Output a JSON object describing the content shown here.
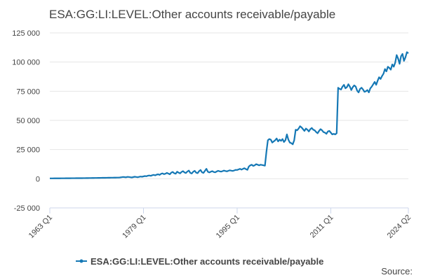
{
  "chart_data": {
    "type": "line",
    "title": "ESA:GG:LI:LEVEL:Other accounts receivable/payable",
    "source": "Source:",
    "categories": [
      "1963 Q1",
      null,
      null,
      null,
      null,
      null,
      null,
      null,
      null,
      null,
      null,
      null,
      null,
      null,
      null,
      null,
      null,
      null,
      null,
      null,
      null,
      null,
      null,
      null,
      null,
      null,
      null,
      null,
      null,
      null,
      null,
      null,
      null,
      null,
      null,
      null,
      null,
      null,
      null,
      null,
      null,
      null,
      null,
      null,
      null,
      null,
      null,
      null,
      null,
      null,
      null,
      null,
      null,
      null,
      null,
      null,
      null,
      null,
      null,
      null,
      null,
      null,
      null,
      null,
      "1979 Q1",
      null,
      null,
      null,
      null,
      null,
      null,
      null,
      null,
      null,
      null,
      null,
      null,
      null,
      null,
      null,
      null,
      null,
      null,
      null,
      null,
      null,
      null,
      null,
      null,
      null,
      null,
      null,
      null,
      null,
      null,
      null,
      null,
      null,
      null,
      null,
      null,
      null,
      null,
      null,
      null,
      null,
      null,
      null,
      null,
      null,
      null,
      null,
      null,
      null,
      null,
      null,
      null,
      null,
      null,
      null,
      null,
      null,
      null,
      null,
      null,
      null,
      null,
      null,
      "1995 Q1",
      null,
      null,
      null,
      null,
      null,
      null,
      null,
      null,
      null,
      null,
      null,
      null,
      null,
      null,
      null,
      null,
      null,
      null,
      null,
      null,
      null,
      null,
      null,
      null,
      null,
      null,
      null,
      null,
      null,
      null,
      null,
      null,
      null,
      null,
      null,
      null,
      null,
      null,
      null,
      null,
      null,
      null,
      null,
      null,
      null,
      null,
      null,
      null,
      null,
      null,
      null,
      null,
      null,
      null,
      null,
      null,
      null,
      null,
      null,
      null,
      null,
      null,
      null,
      "2011 Q1",
      null,
      null,
      null,
      null,
      null,
      null,
      null,
      null,
      null,
      null,
      null,
      null,
      null,
      null,
      null,
      null,
      null,
      null,
      null,
      null,
      null,
      null,
      null,
      null,
      null,
      null,
      null,
      null,
      null,
      null,
      null,
      null,
      null,
      null,
      null,
      null,
      null,
      null,
      null,
      null,
      null,
      null,
      null,
      null,
      null,
      null,
      null,
      null,
      null,
      null,
      null,
      null,
      "2024 Q2"
    ],
    "series": [
      {
        "name": "ESA:GG:LI:LEVEL:Other accounts receivable/payable",
        "color": "#1578b5",
        "values": [
          300,
          310,
          320,
          330,
          340,
          350,
          360,
          370,
          380,
          390,
          400,
          410,
          420,
          430,
          440,
          450,
          460,
          470,
          480,
          490,
          500,
          510,
          520,
          530,
          540,
          560,
          580,
          600,
          620,
          640,
          660,
          680,
          700,
          720,
          740,
          760,
          780,
          800,
          820,
          840,
          860,
          880,
          900,
          920,
          940,
          960,
          980,
          1000,
          1100,
          1300,
          1500,
          1400,
          1200,
          1600,
          1500,
          1300,
          1100,
          1400,
          1700,
          1500,
          1300,
          1600,
          1900,
          1700,
          2000,
          2300,
          2100,
          2600,
          2800,
          2500,
          3000,
          3300,
          2900,
          3500,
          3800,
          3300,
          4200,
          4600,
          3900,
          4300,
          5000,
          4400,
          3800,
          5200,
          5800,
          4700,
          4300,
          6000,
          5200,
          4600,
          5800,
          6500,
          5400,
          4900,
          6200,
          7000,
          5000,
          4500,
          6000,
          6800,
          5200,
          4800,
          6500,
          7500,
          5500,
          5000,
          6800,
          8500,
          6000,
          5400,
          6000,
          6500,
          5800,
          5500,
          6200,
          6800,
          6400,
          6100,
          6500,
          7000,
          6600,
          6300,
          6800,
          7200,
          6900,
          6700,
          7100,
          7600,
          7500,
          8000,
          8500,
          7800,
          8500,
          9000,
          8200,
          7600,
          10500,
          11500,
          12000,
          11000,
          11500,
          12500,
          12000,
          11500,
          12000,
          11800,
          11500,
          11200,
          23000,
          33000,
          34000,
          33500,
          31000,
          32000,
          33000,
          34500,
          32000,
          33500,
          32500,
          34000,
          31500,
          33000,
          38000,
          33500,
          31000,
          30500,
          29500,
          33000,
          42000,
          41500,
          43000,
          45000,
          44000,
          42500,
          41000,
          43000,
          42000,
          40500,
          42500,
          43500,
          42000,
          41500,
          40000,
          39000,
          41000,
          42500,
          41500,
          40000,
          39500,
          38500,
          40500,
          41000,
          39500,
          38000,
          38500,
          38000,
          39000,
          78000,
          77000,
          76500,
          79000,
          80500,
          77500,
          78500,
          81000,
          79000,
          76000,
          78500,
          80000,
          79000,
          75500,
          74000,
          77000,
          78000,
          76500,
          74500,
          75000,
          76000,
          74000,
          77500,
          79000,
          81000,
          83000,
          80500,
          84000,
          87000,
          85500,
          88000,
          90000,
          94000,
          92000,
          96000,
          95000,
          93500,
          98000,
          96000,
          99500,
          106000,
          103000,
          98500,
          105000,
          107000,
          101000,
          104000,
          108500,
          107500
        ]
      }
    ],
    "ylim": [
      -25000,
      125000
    ],
    "yticks": [
      {
        "value": -25000,
        "label": "-25 000"
      },
      0,
      {
        "value": 25000,
        "label": "25 000"
      },
      {
        "value": 50000,
        "label": "50 000"
      },
      {
        "value": 75000,
        "label": "75 000"
      },
      {
        "value": 100000,
        "label": "100 000"
      },
      {
        "value": 125000,
        "label": "125 000"
      }
    ],
    "grid": true
  }
}
